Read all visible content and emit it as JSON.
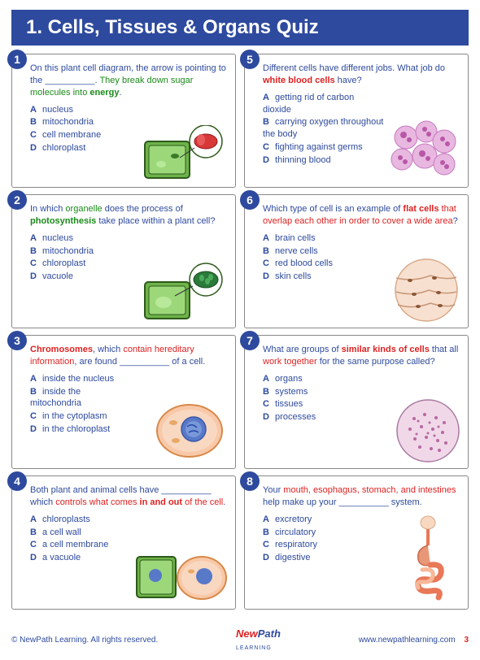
{
  "header": "1. Cells, Tissues & Organs Quiz",
  "questions": [
    {
      "num": "1",
      "html": "On this plant cell diagram, the arrow is pointing to the __________. <span class='hl-green'>They break down sugar molecules into</span> <span class='hl-green-b'>energy</span>.",
      "opts": [
        [
          "A",
          "nucleus"
        ],
        [
          "B",
          "mitochondria"
        ],
        [
          "C",
          "cell membrane"
        ],
        [
          "D",
          "chloroplast"
        ]
      ],
      "svg": "plantcell-arrow"
    },
    {
      "num": "5",
      "html": "Different cells have different jobs.  What job do <span class='hl-red-b'>white blood cells</span> have?",
      "opts": [
        [
          "A",
          "getting rid of carbon dioxide"
        ],
        [
          "B",
          "carrying oxygen throughout the body"
        ],
        [
          "C",
          "fighting against germs"
        ],
        [
          "D",
          "thinning blood"
        ]
      ],
      "svg": "wbc"
    },
    {
      "num": "2",
      "html": "In which <span class='hl-green'>organelle</span> does the process of <span class='hl-green-b'>photosynthesis</span> take place within a plant cell?",
      "opts": [
        [
          "A",
          "nucleus"
        ],
        [
          "B",
          "mitochondria"
        ],
        [
          "C",
          "chloroplast"
        ],
        [
          "D",
          "vacuole"
        ]
      ],
      "svg": "plantcell-chloro"
    },
    {
      "num": "6",
      "html": "Which type of cell is an example of <span class='hl-red-b'>flat cells</span> <span class='hl-red'>that overlap each other in order to cover a wide area</span>?",
      "opts": [
        [
          "A",
          "brain cells"
        ],
        [
          "B",
          "nerve cells"
        ],
        [
          "C",
          "red blood cells"
        ],
        [
          "D",
          "skin cells"
        ]
      ],
      "svg": "skin"
    },
    {
      "num": "3",
      "html": "<span class='hl-red-b'>Chromosomes</span>, which <span class='hl-red'>contain hereditary information</span>, are found __________ of a cell.",
      "opts": [
        [
          "A",
          "inside the nucleus"
        ],
        [
          "B",
          "inside the mitochondria"
        ],
        [
          "C",
          "in the cytoplasm"
        ],
        [
          "D",
          "in the chloroplast"
        ]
      ],
      "svg": "animalcell"
    },
    {
      "num": "7",
      "html": "What are groups of <span class='hl-red-b'>similar kinds of cells</span> that all <span class='hl-red'>work together</span> for the same purpose called?",
      "opts": [
        [
          "A",
          "organs"
        ],
        [
          "B",
          "systems"
        ],
        [
          "C",
          "tissues"
        ],
        [
          "D",
          "processes"
        ]
      ],
      "svg": "tissue"
    },
    {
      "num": "4",
      "html": "Both plant and animal cells have __________ which <span class='hl-red'>controls what comes</span> <span class='hl-red-b'>in and out</span> <span class='hl-red'>of the cell</span>.",
      "opts": [
        [
          "A",
          "chloroplasts"
        ],
        [
          "B",
          "a cell wall"
        ],
        [
          "C",
          "a cell membrane"
        ],
        [
          "D",
          "a vacuole"
        ]
      ],
      "svg": "both-cells"
    },
    {
      "num": "8",
      "html": "Your <span class='hl-red'>mouth, esophagus, stomach, and intestines</span> help make up your __________ system.",
      "opts": [
        [
          "A",
          "excretory"
        ],
        [
          "B",
          "circulatory"
        ],
        [
          "C",
          "respiratory"
        ],
        [
          "D",
          "digestive"
        ]
      ],
      "svg": "digestive"
    }
  ],
  "footer": {
    "copy": "© NewPath Learning. All rights reserved.",
    "logo_np": "NewPath",
    "logo_pl": "Learning",
    "logo_sub": "LEARNING",
    "url": "www.newpathlearning.com",
    "page": "3"
  },
  "colors": {
    "blue": "#2e4a9e",
    "red": "#d22",
    "green": "#1a8a1a"
  }
}
